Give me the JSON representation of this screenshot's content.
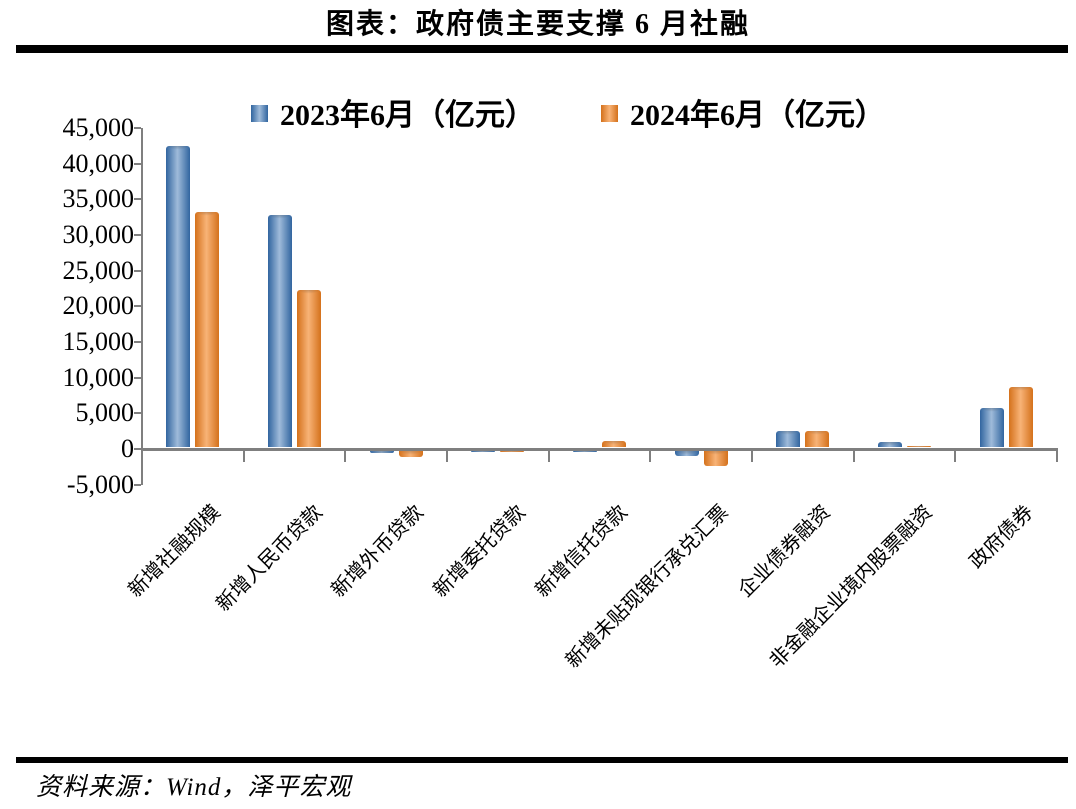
{
  "title": "图表：政府债主要支撑 6 月社融",
  "source_note": "资料来源：Wind，泽平宏观",
  "colors": {
    "series_2023_dark": "#31659F",
    "series_2023_light": "#9FBBDA",
    "series_2024_dark": "#D4711B",
    "series_2024_light": "#F8B377",
    "axis": "#7F7F7F",
    "rule": "#000000"
  },
  "chart_data": {
    "type": "bar",
    "title": "图表：政府债主要支撑 6 月社融",
    "categories": [
      "新增社融规模",
      "新增人民币贷款",
      "新增外币贷款",
      "新增委托贷款",
      "新增信托贷款",
      "新增未贴现银行承兑汇票",
      "企业债券融资",
      "非金融企业境内股票融资",
      "政府债券"
    ],
    "series": [
      {
        "name": "2023年6月（亿元）",
        "values": [
          42200,
          32500,
          -250,
          -60,
          -150,
          -700,
          2300,
          700,
          5400
        ]
      },
      {
        "name": "2024年6月（亿元）",
        "values": [
          33000,
          22000,
          -850,
          -10,
          800,
          -2100,
          2200,
          150,
          8400
        ]
      }
    ],
    "xlabel": "",
    "ylabel": "",
    "ylim": [
      -5000,
      45000
    ],
    "yticks": [
      45000,
      40000,
      35000,
      30000,
      25000,
      20000,
      15000,
      10000,
      5000,
      0,
      -5000
    ],
    "ytick_labels": [
      "45,000",
      "40,000",
      "35,000",
      "30,000",
      "25,000",
      "20,000",
      "15,000",
      "10,000",
      "5,000",
      "0",
      "-5,000"
    ],
    "grid": false,
    "legend_position": "top"
  }
}
